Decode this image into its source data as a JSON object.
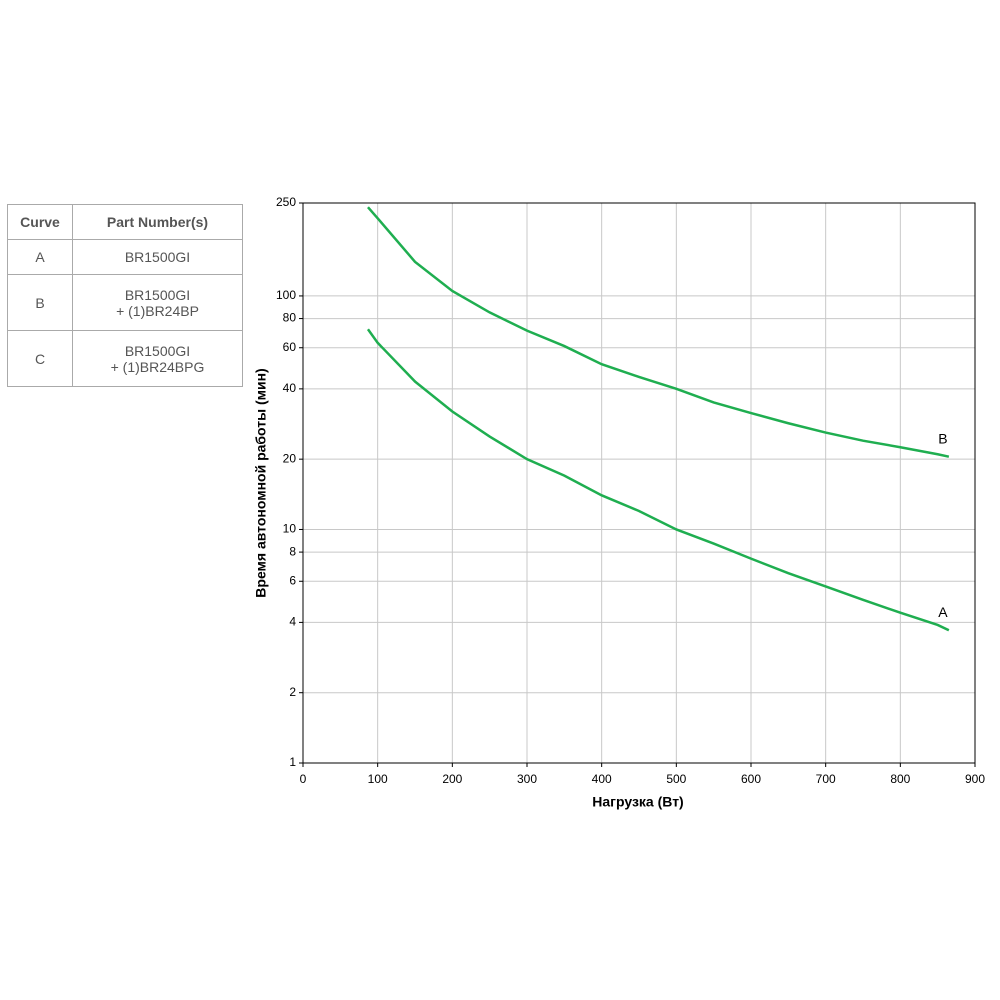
{
  "table": {
    "header": [
      "Curve",
      "Part Number(s)"
    ],
    "rows": [
      [
        "A",
        [
          "BR1500GI"
        ]
      ],
      [
        "B",
        [
          "BR1500GI",
          "+ (1)BR24BP"
        ]
      ],
      [
        "C",
        [
          "BR1500GI",
          "+ (1)BR24BPG"
        ]
      ]
    ]
  },
  "chart_data": {
    "type": "line",
    "xlabel": "Нагрузка (Вт)",
    "ylabel": "Время автономной работы (мин)",
    "x": [
      87,
      100,
      150,
      200,
      250,
      300,
      350,
      400,
      450,
      500,
      550,
      600,
      650,
      700,
      750,
      800,
      850,
      865
    ],
    "series": [
      {
        "name": "A",
        "color": "#1fae50",
        "values": [
          72,
          63,
          43,
          32,
          25,
          20,
          17,
          14,
          12,
          10,
          8.7,
          7.5,
          6.5,
          5.7,
          5.0,
          4.4,
          3.9,
          3.7
        ]
      },
      {
        "name": "B",
        "color": "#1fae50",
        "values": [
          240,
          215,
          140,
          105,
          85,
          71,
          61,
          51,
          45,
          40,
          35,
          31.5,
          28.5,
          26,
          24,
          22.5,
          21,
          20.5
        ]
      }
    ],
    "xlim": [
      0,
      900
    ],
    "xticks": [
      0,
      100,
      200,
      300,
      400,
      500,
      600,
      700,
      800,
      900
    ],
    "ylim": [
      1,
      250
    ],
    "yticks": [
      1,
      2,
      4,
      6,
      8,
      10,
      20,
      40,
      60,
      80,
      100,
      250
    ],
    "ylog": true,
    "grid": true
  }
}
